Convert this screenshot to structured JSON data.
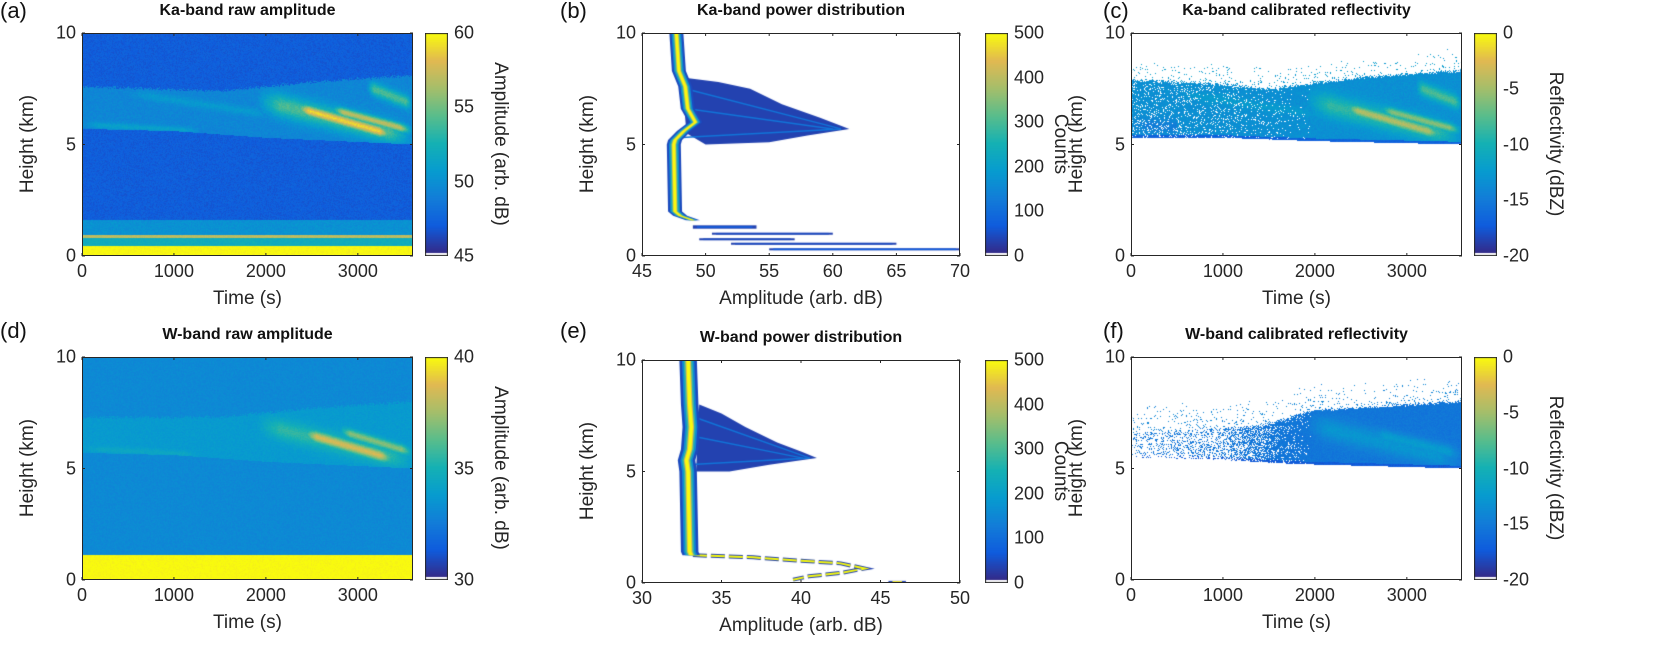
{
  "chart_data": [
    {
      "id": "a",
      "panel_label": "(a)",
      "type": "heatmap",
      "title": "Ka-band raw amplitude",
      "xlabel": "Time (s)",
      "ylabel": "Height (km)",
      "xlim": [
        0,
        3600
      ],
      "ylim": [
        0,
        10
      ],
      "xticks": [
        0,
        1000,
        2000,
        3000
      ],
      "yticks": [
        0,
        5,
        10
      ],
      "colorbar": {
        "label": "Amplitude (arb. dB)",
        "clim": [
          45,
          60
        ],
        "ticks": [
          45,
          50,
          55,
          60
        ]
      },
      "field": {
        "background": 47,
        "noise": 0.5,
        "mask_outside_cloud": false,
        "layers": [
          {
            "h": [
              0,
              0.45
            ],
            "v": 60
          },
          {
            "h": [
              0.45,
              0.8
            ],
            "v": 52
          },
          {
            "h": [
              0.8,
              0.95
            ],
            "v": 57
          },
          {
            "h": [
              0.95,
              1.6
            ],
            "v": 50
          }
        ],
        "cloud": {
          "base": [
            [
              0,
              5.7
            ],
            [
              1000,
              5.6
            ],
            [
              2000,
              5.3
            ],
            [
              3600,
              5.0
            ]
          ],
          "top": [
            [
              0,
              7.6
            ],
            [
              1500,
              7.4
            ],
            [
              2500,
              7.8
            ],
            [
              3600,
              8.1
            ]
          ],
          "value": 49.3,
          "streaks": [
            {
              "t": [
                0,
                1300
              ],
              "h": [
                5.9,
                5.6
              ],
              "w": 0.15,
              "v": 51
            },
            {
              "t": [
                500,
                2100
              ],
              "h": [
                7.3,
                6.3
              ],
              "w": 0.2,
              "v": 50.5
            },
            {
              "t": [
                1900,
                3600
              ],
              "h": [
                7.0,
                5.3
              ],
              "w": 0.5,
              "v": 54
            },
            {
              "t": [
                2300,
                3400
              ],
              "h": [
                6.7,
                5.4
              ],
              "w": 0.25,
              "v": 59
            },
            {
              "t": [
                2700,
                3600
              ],
              "h": [
                6.6,
                5.6
              ],
              "w": 0.2,
              "v": 57
            },
            {
              "t": [
                3100,
                3600
              ],
              "h": [
                7.6,
                6.8
              ],
              "w": 0.3,
              "v": 54
            }
          ]
        }
      }
    },
    {
      "id": "b",
      "panel_label": "(b)",
      "type": "distribution",
      "title": "Ka-band power distribution",
      "xlabel": "Amplitude (arb. dB)",
      "ylabel": "Height (km)",
      "xlim": [
        45,
        70
      ],
      "ylim": [
        0,
        10
      ],
      "xticks": [
        45,
        50,
        55,
        60,
        65,
        70
      ],
      "yticks": [
        0,
        5,
        10
      ],
      "colorbar": {
        "label": "Counts",
        "clim": [
          0,
          500
        ],
        "ticks": [
          0,
          100,
          200,
          300,
          400,
          500
        ]
      },
      "mode_profile": [
        [
          10,
          47.7
        ],
        [
          8.3,
          47.9
        ],
        [
          7.6,
          48.4
        ],
        [
          6.6,
          48.6
        ],
        [
          6.0,
          49.2
        ],
        [
          5.6,
          48.3
        ],
        [
          5.2,
          47.6
        ],
        [
          5.0,
          47.5
        ],
        [
          2.0,
          47.6
        ],
        [
          1.8,
          48.0
        ],
        [
          1.6,
          49.0
        ]
      ],
      "mode_spread": 0.55,
      "cloud_polygon": [
        [
          8.0,
          48.2
        ],
        [
          7.8,
          51
        ],
        [
          7.5,
          53.5
        ],
        [
          6.8,
          56
        ],
        [
          6.2,
          59
        ],
        [
          5.7,
          61.3
        ],
        [
          5.4,
          58
        ],
        [
          5.1,
          55
        ],
        [
          5.0,
          50
        ],
        [
          5.5,
          48.5
        ],
        [
          6.8,
          48.3
        ]
      ],
      "surface_streaks": [
        {
          "h": 1.3,
          "x": [
            49,
            54
          ],
          "w": 0.15,
          "c": 60
        },
        {
          "h": 1.0,
          "x": [
            50.5,
            60
          ],
          "w": 0.08,
          "c": 40
        },
        {
          "h": 0.75,
          "x": [
            49.5,
            57
          ],
          "w": 0.09,
          "c": 40
        },
        {
          "h": 0.55,
          "x": [
            52,
            65
          ],
          "w": 0.07,
          "c": 40
        },
        {
          "h": 0.3,
          "x": [
            55,
            70
          ],
          "w": 0.06,
          "c": 60
        }
      ]
    },
    {
      "id": "c",
      "panel_label": "(c)",
      "type": "heatmap",
      "title": "Ka-band calibrated reflectivity",
      "xlabel": "Time (s)",
      "ylabel": "Height (km)",
      "xlim": [
        0,
        3600
      ],
      "ylim": [
        0,
        10
      ],
      "xticks": [
        0,
        1000,
        2000,
        3000
      ],
      "yticks": [
        0,
        5,
        10
      ],
      "colorbar": {
        "label": "Reflectivity (dBZ)",
        "clim": [
          -20,
          0
        ],
        "ticks": [
          -20,
          -15,
          -10,
          -5,
          0
        ]
      },
      "field": {
        "background": null,
        "noise": 0.6,
        "mask_outside_cloud": true,
        "fill_by_time": [
          [
            0,
            0.85
          ],
          [
            1500,
            0.9
          ],
          [
            2000,
            1
          ],
          [
            3600,
            1
          ]
        ],
        "top_speckle_km": 1.0,
        "base_edge_value": -17,
        "layers": [],
        "cloud": {
          "base": [
            [
              0,
              5.3
            ],
            [
              1000,
              5.3
            ],
            [
              2000,
              5.15
            ],
            [
              3600,
              5.0
            ]
          ],
          "top": [
            [
              0,
              7.9
            ],
            [
              1000,
              7.7
            ],
            [
              1500,
              7.5
            ],
            [
              2500,
              8.0
            ],
            [
              3600,
              8.3
            ]
          ],
          "value": -13.5,
          "streaks": [
            {
              "t": [
                0,
                1300
              ],
              "h": [
                5.9,
                5.6
              ],
              "w": 0.3,
              "v": -15
            },
            {
              "t": [
                500,
                2100
              ],
              "h": [
                7.3,
                6.3
              ],
              "w": 0.2,
              "v": -12.5
            },
            {
              "t": [
                1900,
                3600
              ],
              "h": [
                7.0,
                5.3
              ],
              "w": 0.5,
              "v": -9
            },
            {
              "t": [
                2300,
                3400
              ],
              "h": [
                6.7,
                5.4
              ],
              "w": 0.25,
              "v": -4.5
            },
            {
              "t": [
                2700,
                3600
              ],
              "h": [
                6.6,
                5.6
              ],
              "w": 0.2,
              "v": -6
            },
            {
              "t": [
                3100,
                3600
              ],
              "h": [
                7.6,
                6.8
              ],
              "w": 0.3,
              "v": -8
            }
          ]
        }
      }
    },
    {
      "id": "d",
      "panel_label": "(d)",
      "type": "heatmap",
      "title": "W-band raw amplitude",
      "xlabel": "Time (s)",
      "ylabel": "Height (km)",
      "xlim": [
        0,
        3600
      ],
      "ylim": [
        0,
        10
      ],
      "xticks": [
        0,
        1000,
        2000,
        3000
      ],
      "yticks": [
        0,
        5,
        10
      ],
      "colorbar": {
        "label": "Amplitude (arb. dB)",
        "clim": [
          30,
          40
        ],
        "ticks": [
          30,
          35,
          40
        ]
      },
      "field": {
        "background": 33,
        "noise": 0.25,
        "mask_outside_cloud": false,
        "layers": [
          {
            "h": [
              0,
              1.1
            ],
            "v": 40
          }
        ],
        "cloud": {
          "base": [
            [
              0,
              5.7
            ],
            [
              1000,
              5.6
            ],
            [
              2000,
              5.3
            ],
            [
              3600,
              5.0
            ]
          ],
          "top": [
            [
              0,
              7.3
            ],
            [
              1500,
              7.3
            ],
            [
              2500,
              7.7
            ],
            [
              3600,
              8.0
            ]
          ],
          "value": 33.7,
          "streaks": [
            {
              "t": [
                0,
                1300
              ],
              "h": [
                5.9,
                5.6
              ],
              "w": 0.15,
              "v": 34.3
            },
            {
              "t": [
                1900,
                3600
              ],
              "h": [
                7.0,
                5.3
              ],
              "w": 0.45,
              "v": 35.5
            },
            {
              "t": [
                2400,
                3400
              ],
              "h": [
                6.6,
                5.4
              ],
              "w": 0.25,
              "v": 38.5
            },
            {
              "t": [
                2800,
                3600
              ],
              "h": [
                6.7,
                5.7
              ],
              "w": 0.2,
              "v": 37
            }
          ]
        }
      }
    },
    {
      "id": "e",
      "panel_label": "(e)",
      "type": "distribution",
      "title": "W-band power distribution",
      "xlabel": "Amplitude (arb. dB)",
      "ylabel": "Height (km)",
      "xlim": [
        30,
        50
      ],
      "ylim": [
        0,
        10
      ],
      "xticks": [
        30,
        35,
        40,
        45,
        50
      ],
      "yticks": [
        0,
        5,
        10
      ],
      "colorbar": {
        "label": "Counts",
        "clim": [
          0,
          500
        ],
        "ticks": [
          0,
          100,
          200,
          300,
          400,
          500
        ]
      },
      "mode_profile": [
        [
          10,
          32.9
        ],
        [
          8.0,
          33.0
        ],
        [
          7.0,
          33.1
        ],
        [
          6.0,
          33.0
        ],
        [
          5.5,
          32.8
        ],
        [
          5.0,
          32.9
        ],
        [
          1.4,
          33.0
        ],
        [
          1.25,
          33.1
        ]
      ],
      "mode_spread": 0.55,
      "cloud_polygon": [
        [
          8.0,
          33.6
        ],
        [
          7.6,
          35
        ],
        [
          7.0,
          36.5
        ],
        [
          6.3,
          38.5
        ],
        [
          5.9,
          40
        ],
        [
          5.6,
          41.0
        ],
        [
          5.3,
          38
        ],
        [
          5.0,
          35.5
        ],
        [
          5.0,
          33.4
        ]
      ],
      "surface_zigzag": [
        [
          1.25,
          33.2
        ],
        [
          1.15,
          37
        ],
        [
          1.0,
          40
        ],
        [
          0.88,
          42.5
        ],
        [
          0.65,
          44
        ],
        [
          0.45,
          42.5
        ],
        [
          0.3,
          40.5
        ],
        [
          0.15,
          39.5
        ]
      ],
      "surface_streaks": [
        {
          "h": 0.05,
          "x": [
            45.5,
            46.6
          ],
          "w": 0.05,
          "c": 480
        }
      ]
    },
    {
      "id": "f",
      "panel_label": "(f)",
      "type": "heatmap",
      "title": "W-band calibrated reflectivity",
      "xlabel": "Time (s)",
      "ylabel": "Height (km)",
      "xlim": [
        0,
        3600
      ],
      "ylim": [
        0,
        10
      ],
      "xticks": [
        0,
        1000,
        2000,
        3000
      ],
      "yticks": [
        0,
        5,
        10
      ],
      "colorbar": {
        "label": "Reflectivity (dBZ)",
        "clim": [
          -20,
          0
        ],
        "ticks": [
          -20,
          -15,
          -10,
          -5,
          0
        ]
      },
      "field": {
        "background": null,
        "noise": 0.5,
        "mask_outside_cloud": true,
        "fill_by_time": [
          [
            0,
            0.15
          ],
          [
            1000,
            0.3
          ],
          [
            1500,
            0.75
          ],
          [
            2000,
            1
          ],
          [
            3600,
            1
          ]
        ],
        "top_speckle_km": 1.3,
        "base_edge_value": -17.5,
        "layers": [],
        "cloud": {
          "base": [
            [
              0,
              5.5
            ],
            [
              900,
              5.4
            ],
            [
              1800,
              5.2
            ],
            [
              3600,
              5.0
            ]
          ],
          "top": [
            [
              0,
              6.6
            ],
            [
              1400,
              6.9
            ],
            [
              2000,
              7.6
            ],
            [
              3600,
              8.0
            ]
          ],
          "value": -15.5,
          "streaks": [
            {
              "t": [
                1900,
                3600
              ],
              "h": [
                7.0,
                5.3
              ],
              "w": 0.5,
              "v": -13
            },
            {
              "t": [
                2600,
                3600
              ],
              "h": [
                6.6,
                5.6
              ],
              "w": 0.3,
              "v": -12.5
            }
          ]
        }
      }
    }
  ]
}
